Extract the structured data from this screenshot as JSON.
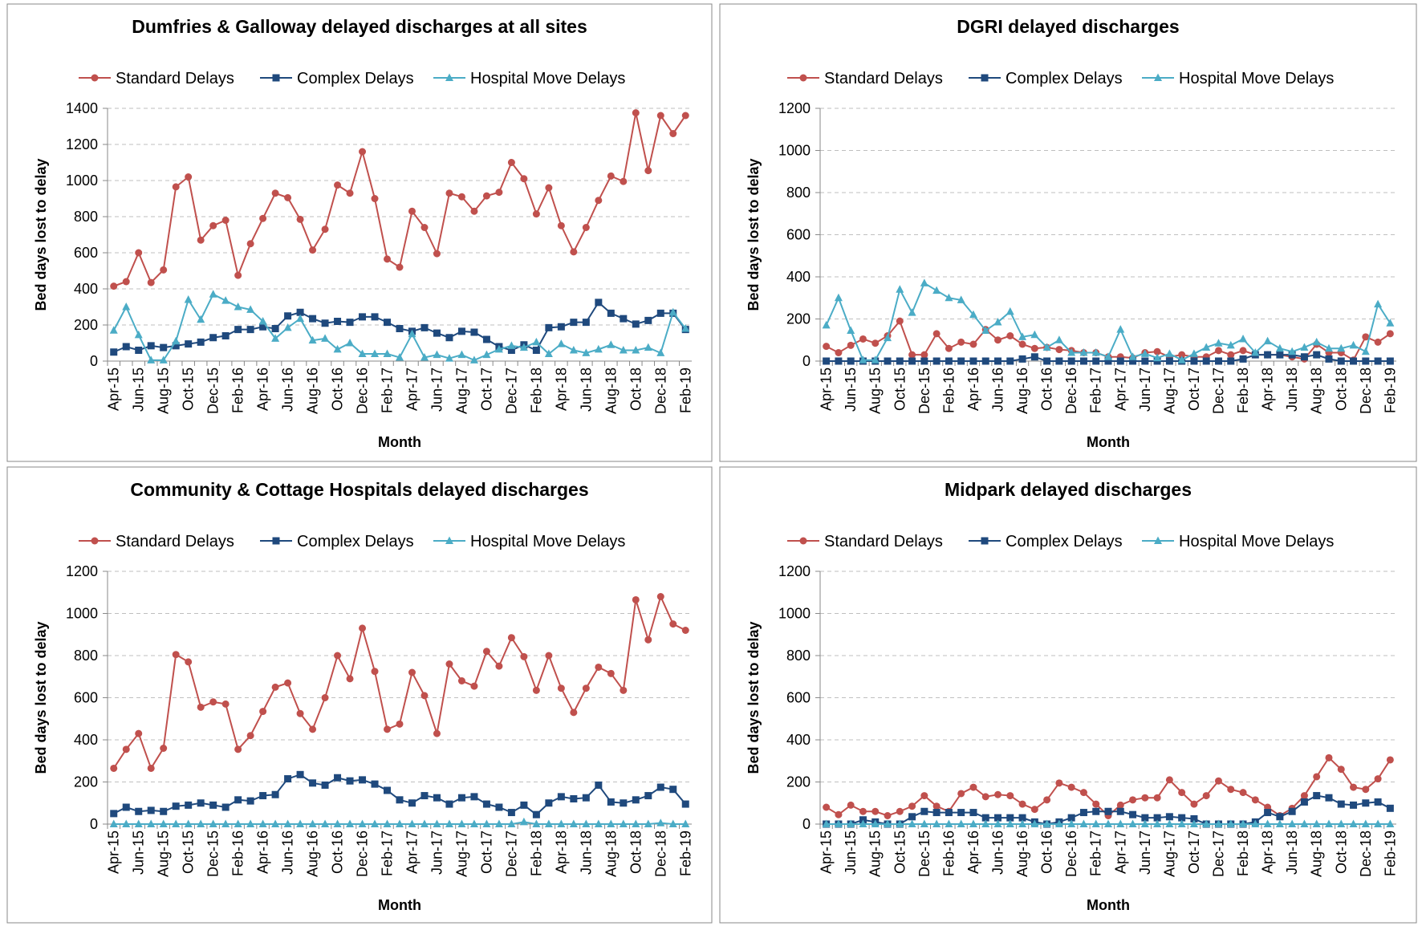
{
  "chart_data": [
    {
      "type": "line",
      "title": "Dumfries & Galloway delayed discharges at all sites",
      "y_label": "Bed days lost to delay",
      "x_label": "Month",
      "categories": [
        "Apr-15",
        null,
        "Jun-15",
        null,
        "Aug-15",
        null,
        "Oct-15",
        null,
        "Dec-15",
        null,
        "Feb-16",
        null,
        "Apr-16",
        null,
        "Jun-16",
        null,
        "Aug-16",
        null,
        "Oct-16",
        null,
        "Dec-16",
        null,
        "Feb-17",
        null,
        "Apr-17",
        null,
        "Jun-17",
        null,
        "Aug-17",
        null,
        "Oct-17",
        null,
        "Dec-17",
        null,
        "Feb-18",
        null,
        "Apr-18",
        null,
        "Jun-18",
        null,
        "Aug-18",
        null,
        "Oct-18",
        null,
        "Dec-18",
        null,
        "Feb-19"
      ],
      "ylim": [
        0,
        1400
      ],
      "yticks": [
        0,
        200,
        400,
        600,
        800,
        1000,
        1200,
        1400
      ],
      "grid": true,
      "series": [
        {
          "name": "Standard Delays",
          "color": "#c0504d",
          "marker": "circle",
          "values": [
            415,
            440,
            600,
            435,
            505,
            965,
            1020,
            670,
            750,
            780,
            475,
            650,
            790,
            930,
            905,
            785,
            615,
            730,
            975,
            930,
            1160,
            900,
            565,
            520,
            830,
            740,
            595,
            930,
            910,
            830,
            915,
            935,
            1100,
            1010,
            815,
            960,
            750,
            605,
            740,
            890,
            1025,
            995,
            1375,
            1055,
            1360,
            1260,
            1360
          ]
        },
        {
          "name": "Complex Delays",
          "color": "#1f497d",
          "marker": "square",
          "values": [
            50,
            80,
            60,
            85,
            75,
            85,
            95,
            105,
            130,
            140,
            175,
            175,
            190,
            180,
            250,
            270,
            235,
            210,
            220,
            215,
            245,
            245,
            215,
            180,
            165,
            185,
            155,
            130,
            165,
            160,
            120,
            80,
            60,
            90,
            60,
            185,
            190,
            215,
            215,
            325,
            265,
            235,
            205,
            225,
            265,
            265,
            175
          ]
        },
        {
          "name": "Hospital Move Delays",
          "color": "#4bacc6",
          "marker": "triangle",
          "values": [
            170,
            300,
            145,
            5,
            5,
            110,
            340,
            230,
            370,
            335,
            300,
            285,
            220,
            125,
            185,
            235,
            115,
            125,
            65,
            100,
            40,
            40,
            40,
            20,
            150,
            20,
            35,
            15,
            35,
            5,
            35,
            65,
            85,
            75,
            105,
            40,
            95,
            60,
            45,
            65,
            90,
            60,
            60,
            75,
            45,
            270,
            180
          ]
        }
      ]
    },
    {
      "type": "line",
      "title": "DGRI delayed discharges",
      "y_label": "Bed days lost to delay",
      "x_label": "Month",
      "categories": [
        "Apr-15",
        null,
        "Jun-15",
        null,
        "Aug-15",
        null,
        "Oct-15",
        null,
        "Dec-15",
        null,
        "Feb-16",
        null,
        "Apr-16",
        null,
        "Jun-16",
        null,
        "Aug-16",
        null,
        "Oct-16",
        null,
        "Dec-16",
        null,
        "Feb-17",
        null,
        "Apr-17",
        null,
        "Jun-17",
        null,
        "Aug-17",
        null,
        "Oct-17",
        null,
        "Dec-17",
        null,
        "Feb-18",
        null,
        "Apr-18",
        null,
        "Jun-18",
        null,
        "Aug-18",
        null,
        "Oct-18",
        null,
        "Dec-18",
        null,
        "Feb-19"
      ],
      "ylim": [
        0,
        1200
      ],
      "yticks": [
        0,
        200,
        400,
        600,
        800,
        1000,
        1200
      ],
      "grid": true,
      "series": [
        {
          "name": "Standard Delays",
          "color": "#c0504d",
          "marker": "circle",
          "values": [
            70,
            40,
            75,
            105,
            85,
            120,
            190,
            30,
            30,
            130,
            60,
            90,
            80,
            150,
            100,
            120,
            80,
            60,
            65,
            55,
            50,
            40,
            40,
            20,
            20,
            15,
            40,
            45,
            20,
            30,
            20,
            20,
            50,
            30,
            50,
            30,
            30,
            30,
            20,
            10,
            80,
            40,
            40,
            5,
            115,
            90,
            130
          ]
        },
        {
          "name": "Complex Delays",
          "color": "#1f497d",
          "marker": "square",
          "values": [
            0,
            0,
            0,
            0,
            0,
            0,
            0,
            0,
            0,
            0,
            0,
            0,
            0,
            0,
            0,
            0,
            10,
            20,
            0,
            0,
            0,
            0,
            0,
            0,
            0,
            0,
            0,
            0,
            0,
            0,
            0,
            0,
            0,
            0,
            10,
            30,
            30,
            30,
            30,
            20,
            30,
            10,
            0,
            0,
            0,
            0,
            0
          ]
        },
        {
          "name": "Hospital Move Delays",
          "color": "#4bacc6",
          "marker": "triangle",
          "values": [
            170,
            300,
            145,
            5,
            5,
            110,
            340,
            230,
            370,
            335,
            300,
            290,
            220,
            145,
            185,
            235,
            115,
            125,
            65,
            100,
            40,
            40,
            40,
            20,
            150,
            20,
            35,
            15,
            35,
            5,
            35,
            65,
            85,
            75,
            105,
            40,
            95,
            60,
            45,
            65,
            90,
            60,
            60,
            75,
            45,
            270,
            180
          ]
        }
      ]
    },
    {
      "type": "line",
      "title": "Community & Cottage Hospitals delayed discharges",
      "y_label": "Bed days lost to delay",
      "x_label": "Month",
      "categories": [
        "Apr-15",
        null,
        "Jun-15",
        null,
        "Aug-15",
        null,
        "Oct-15",
        null,
        "Dec-15",
        null,
        "Feb-16",
        null,
        "Apr-16",
        null,
        "Jun-16",
        null,
        "Aug-16",
        null,
        "Oct-16",
        null,
        "Dec-16",
        null,
        "Feb-17",
        null,
        "Apr-17",
        null,
        "Jun-17",
        null,
        "Aug-17",
        null,
        "Oct-17",
        null,
        "Dec-17",
        null,
        "Feb-18",
        null,
        "Apr-18",
        null,
        "Jun-18",
        null,
        "Aug-18",
        null,
        "Oct-18",
        null,
        "Dec-18",
        null,
        "Feb-19"
      ],
      "ylim": [
        0,
        1200
      ],
      "yticks": [
        0,
        200,
        400,
        600,
        800,
        1000,
        1200
      ],
      "grid": true,
      "series": [
        {
          "name": "Standard Delays",
          "color": "#c0504d",
          "marker": "circle",
          "values": [
            265,
            355,
            430,
            265,
            360,
            805,
            770,
            555,
            580,
            570,
            355,
            420,
            535,
            650,
            670,
            525,
            450,
            600,
            800,
            690,
            930,
            725,
            450,
            475,
            720,
            610,
            430,
            760,
            680,
            655,
            820,
            750,
            885,
            795,
            635,
            800,
            645,
            530,
            645,
            745,
            715,
            635,
            1065,
            875,
            1080,
            950,
            920
          ]
        },
        {
          "name": "Complex Delays",
          "color": "#1f497d",
          "marker": "square",
          "values": [
            50,
            80,
            60,
            65,
            60,
            85,
            90,
            100,
            90,
            80,
            115,
            110,
            135,
            140,
            215,
            235,
            195,
            185,
            220,
            205,
            210,
            190,
            160,
            115,
            100,
            135,
            125,
            95,
            125,
            130,
            95,
            80,
            55,
            90,
            45,
            100,
            130,
            120,
            125,
            185,
            105,
            100,
            115,
            135,
            175,
            165,
            95
          ]
        },
        {
          "name": "Hospital Move Delays",
          "color": "#4bacc6",
          "marker": "triangle",
          "values": [
            0,
            0,
            0,
            0,
            0,
            0,
            0,
            0,
            0,
            0,
            0,
            0,
            0,
            0,
            0,
            0,
            0,
            0,
            0,
            0,
            0,
            0,
            0,
            0,
            0,
            0,
            0,
            0,
            0,
            0,
            0,
            0,
            0,
            10,
            0,
            0,
            0,
            0,
            0,
            0,
            0,
            0,
            0,
            0,
            5,
            0,
            0
          ]
        }
      ]
    },
    {
      "type": "line",
      "title": "Midpark delayed discharges",
      "y_label": "Bed days lost to delay",
      "x_label": "Month",
      "categories": [
        "Apr-15",
        null,
        "Jun-15",
        null,
        "Aug-15",
        null,
        "Oct-15",
        null,
        "Dec-15",
        null,
        "Feb-16",
        null,
        "Apr-16",
        null,
        "Jun-16",
        null,
        "Aug-16",
        null,
        "Oct-16",
        null,
        "Dec-16",
        null,
        "Feb-17",
        null,
        "Apr-17",
        null,
        "Jun-17",
        null,
        "Aug-17",
        null,
        "Oct-17",
        null,
        "Dec-17",
        null,
        "Feb-18",
        null,
        "Apr-18",
        null,
        "Jun-18",
        null,
        "Aug-18",
        null,
        "Oct-18",
        null,
        "Dec-18",
        null,
        "Feb-19"
      ],
      "ylim": [
        0,
        1200
      ],
      "yticks": [
        0,
        200,
        400,
        600,
        800,
        1000,
        1200
      ],
      "grid": true,
      "series": [
        {
          "name": "Standard Delays",
          "color": "#c0504d",
          "marker": "circle",
          "values": [
            80,
            45,
            90,
            60,
            60,
            40,
            60,
            85,
            135,
            85,
            60,
            145,
            175,
            130,
            140,
            135,
            95,
            70,
            115,
            195,
            175,
            150,
            95,
            40,
            90,
            115,
            125,
            125,
            210,
            150,
            95,
            135,
            205,
            165,
            150,
            115,
            80,
            40,
            75,
            135,
            225,
            315,
            260,
            175,
            165,
            215,
            305
          ]
        },
        {
          "name": "Complex Delays",
          "color": "#1f497d",
          "marker": "square",
          "values": [
            0,
            0,
            0,
            20,
            10,
            0,
            0,
            35,
            60,
            55,
            55,
            55,
            55,
            30,
            30,
            30,
            30,
            10,
            0,
            10,
            30,
            55,
            60,
            60,
            60,
            45,
            30,
            30,
            35,
            30,
            25,
            0,
            0,
            0,
            0,
            10,
            55,
            35,
            60,
            105,
            135,
            125,
            95,
            90,
            100,
            105,
            75
          ]
        },
        {
          "name": "Hospital Move Delays",
          "color": "#4bacc6",
          "marker": "triangle",
          "values": [
            0,
            0,
            0,
            0,
            0,
            0,
            0,
            0,
            0,
            0,
            0,
            0,
            0,
            0,
            0,
            0,
            0,
            0,
            0,
            0,
            0,
            0,
            0,
            0,
            0,
            0,
            0,
            0,
            0,
            0,
            0,
            0,
            0,
            0,
            0,
            0,
            0,
            0,
            0,
            0,
            0,
            0,
            0,
            0,
            0,
            0,
            0
          ]
        }
      ]
    }
  ]
}
